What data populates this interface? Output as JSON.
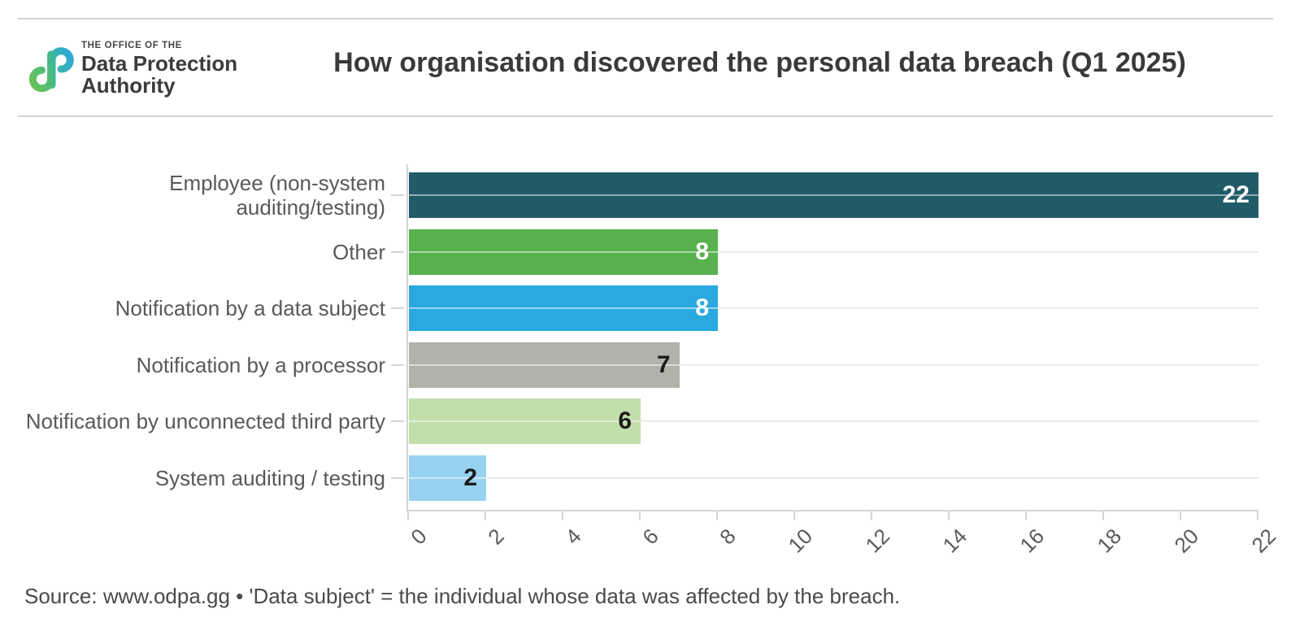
{
  "header": {
    "logo": {
      "top": "THE OFFICE OF THE",
      "name_line1": "Data Protection",
      "name_line2": "Authority"
    },
    "title": "How organisation discovered the personal data breach (Q1 2025)"
  },
  "chart_data": {
    "type": "bar",
    "orientation": "horizontal",
    "title": "How organisation discovered the personal data breach (Q1 2025)",
    "categories": [
      "Employee (non-system auditing/testing)",
      "Other",
      "Notification by a data subject",
      "Notification by a processor",
      "Notification by unconnected third party",
      "System auditing / testing"
    ],
    "category_label_lines": [
      [
        "Employee (non-system",
        "auditing/testing)"
      ],
      [
        "Other"
      ],
      [
        "Notification by a data subject"
      ],
      [
        "Notification by a processor"
      ],
      [
        "Notification by unconnected third party"
      ],
      [
        "System auditing / testing"
      ]
    ],
    "values": [
      22,
      8,
      8,
      7,
      6,
      2
    ],
    "bar_colors": [
      "#215b68",
      "#57b14d",
      "#29a9e0",
      "#b2b2ab",
      "#c1deab",
      "#97d3f0"
    ],
    "value_label_colors": [
      "#ffffff",
      "#ffffff",
      "#ffffff",
      "#1c1c1c",
      "#1c1c1c",
      "#1c1c1c"
    ],
    "x_ticks": [
      0,
      2,
      4,
      6,
      8,
      10,
      12,
      14,
      16,
      18,
      20,
      22
    ],
    "xlim": [
      0,
      22
    ],
    "xlabel": "",
    "ylabel": "",
    "grid": "white row gridlines drawn over bars",
    "legend": "none"
  },
  "footer": {
    "source": "Source: www.odpa.gg • 'Data subject' = the individual whose data was affected by the breach."
  },
  "colors": {
    "title_text": "#3a3a3a",
    "category_label": "#595959",
    "tick_label": "#5a5a5a",
    "axis": "#d6d6d6",
    "header_rules": "#d2d2d2",
    "source_text": "#4a4a4a",
    "logo_teal": "#35b0c8",
    "logo_green": "#5fbe54"
  }
}
